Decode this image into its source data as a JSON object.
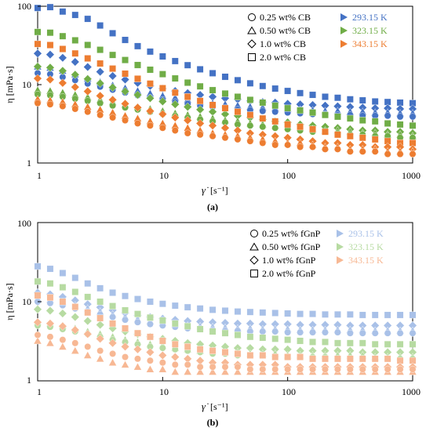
{
  "panels": [
    {
      "caption": "(a)"
    },
    {
      "caption": "(b)"
    }
  ],
  "chart_data": [
    {
      "type": "scatter",
      "title": "",
      "xlabel": "γ̇",
      "xunit": "[s⁻¹]",
      "ylabel": "η [mPa·s]",
      "xscale": "log",
      "yscale": "log",
      "xlim": [
        1,
        1000
      ],
      "ylim": [
        1,
        100
      ],
      "xticks": [
        "1",
        "10",
        "100",
        "1000"
      ],
      "yticks": [
        "1",
        "10",
        "100"
      ],
      "grid": false,
      "legend_placement": "top-right",
      "legend_shapes": [
        {
          "marker": "circle",
          "label": "0.25 wt% CB"
        },
        {
          "marker": "triangle",
          "label": "0.50 wt% CB"
        },
        {
          "marker": "diamond",
          "label": "1.0 wt% CB"
        },
        {
          "marker": "square",
          "label": "2.0 wt% CB"
        }
      ],
      "legend_temps": [
        {
          "label": "293.15 K",
          "color": "#4472C4"
        },
        {
          "label": "323.15 K",
          "color": "#70AD47"
        },
        {
          "label": "343.15 K",
          "color": "#ED7D31"
        }
      ],
      "x": [
        1.0,
        1.259,
        1.585,
        1.995,
        2.512,
        3.162,
        3.981,
        5.012,
        6.31,
        7.943,
        10.0,
        12.59,
        15.85,
        19.95,
        25.12,
        31.62,
        39.81,
        50.12,
        63.1,
        79.43,
        100.0,
        125.9,
        158.5,
        199.5,
        251.2,
        316.2,
        398.1,
        501.2,
        631.0,
        794.3,
        1000.0
      ],
      "series": [
        {
          "marker": "square",
          "color": "#4472C4",
          "values": [
            95,
            97.4,
            85.6,
            77.4,
            69.0,
            56.8,
            45.3,
            37.2,
            31.0,
            26.4,
            22.9,
            20.0,
            17.7,
            15.7,
            14.0,
            12.6,
            11.4,
            10.4,
            9.6,
            8.9,
            8.3,
            7.8,
            7.4,
            7.0,
            6.8,
            6.5,
            6.3,
            6.1,
            6.0,
            5.9,
            5.8
          ]
        },
        {
          "marker": "diamond",
          "color": "#4472C4",
          "values": [
            25,
            24.2,
            22.0,
            19.5,
            16.8,
            14.6,
            12.9,
            11.6,
            10.5,
            9.6,
            8.9,
            8.3,
            7.8,
            7.4,
            7.0,
            6.7,
            6.5,
            6.2,
            6.0,
            5.9,
            5.7,
            5.6,
            5.5,
            5.4,
            5.3,
            5.2,
            5.1,
            5.0,
            5.0,
            4.9,
            4.9
          ]
        },
        {
          "marker": "triangle",
          "color": "#4472C4",
          "values": [
            17,
            16.4,
            15.0,
            13.5,
            12.0,
            10.8,
            9.8,
            9.0,
            8.3,
            7.7,
            7.2,
            6.8,
            6.4,
            6.1,
            5.8,
            5.6,
            5.4,
            5.2,
            5.1,
            5.0,
            4.9,
            4.8,
            4.7,
            4.6,
            4.6,
            4.5,
            4.5,
            4.4,
            4.4,
            4.3,
            4.3
          ]
        },
        {
          "marker": "circle",
          "color": "#4472C4",
          "values": [
            14,
            13.6,
            12.5,
            11.4,
            10.3,
            9.4,
            8.6,
            7.9,
            7.3,
            6.8,
            6.4,
            6.0,
            5.7,
            5.4,
            5.2,
            5.0,
            4.8,
            4.7,
            4.6,
            4.5,
            4.4,
            4.3,
            4.2,
            4.2,
            4.1,
            4.1,
            4.0,
            4.0,
            4.0,
            3.9,
            3.9
          ]
        },
        {
          "marker": "square",
          "color": "#70AD47",
          "values": [
            47,
            46.0,
            41.5,
            36.8,
            32.1,
            27.8,
            23.9,
            20.6,
            17.8,
            15.5,
            13.6,
            12.0,
            10.6,
            9.5,
            8.5,
            7.7,
            7.0,
            6.4,
            5.9,
            5.4,
            5.0,
            4.7,
            4.4,
            4.1,
            3.9,
            3.7,
            3.5,
            3.4,
            3.2,
            3.1,
            3.0
          ]
        },
        {
          "marker": "diamond",
          "color": "#70AD47",
          "values": [
            17,
            16.5,
            15.0,
            13.4,
            11.8,
            10.4,
            9.2,
            8.2,
            7.4,
            6.7,
            6.1,
            5.6,
            5.2,
            4.8,
            4.5,
            4.2,
            4.0,
            3.8,
            3.6,
            3.4,
            3.3,
            3.1,
            3.0,
            2.9,
            2.8,
            2.7,
            2.6,
            2.6,
            2.5,
            2.5,
            2.4
          ]
        },
        {
          "marker": "triangle",
          "color": "#70AD47",
          "values": [
            8.5,
            8.3,
            7.9,
            7.4,
            6.9,
            6.4,
            6.0,
            5.6,
            5.2,
            4.9,
            4.6,
            4.3,
            4.1,
            3.9,
            3.7,
            3.5,
            3.4,
            3.2,
            3.1,
            3.0,
            2.9,
            2.8,
            2.7,
            2.6,
            2.6,
            2.5,
            2.4,
            2.4,
            2.3,
            2.3,
            2.2
          ]
        },
        {
          "marker": "circle",
          "color": "#70AD47",
          "values": [
            7.5,
            7.3,
            7.0,
            6.6,
            6.2,
            5.8,
            5.4,
            5.1,
            4.8,
            4.5,
            4.2,
            4.0,
            3.8,
            3.6,
            3.4,
            3.3,
            3.1,
            3.0,
            2.9,
            2.8,
            2.7,
            2.6,
            2.5,
            2.5,
            2.4,
            2.3,
            2.3,
            2.2,
            2.2,
            2.1,
            2.1
          ]
        },
        {
          "marker": "square",
          "color": "#ED7D31",
          "values": [
            33,
            32.0,
            28.5,
            25.0,
            21.6,
            18.6,
            16.0,
            13.8,
            11.9,
            10.3,
            9.0,
            7.9,
            7.0,
            6.2,
            5.5,
            5.0,
            4.5,
            4.1,
            3.7,
            3.4,
            3.1,
            2.9,
            2.7,
            2.5,
            2.3,
            2.2,
            2.1,
            2.0,
            1.9,
            1.8,
            1.8
          ]
        },
        {
          "marker": "diamond",
          "color": "#ED7D31",
          "values": [
            12,
            11.6,
            10.5,
            9.3,
            8.2,
            7.2,
            6.4,
            5.7,
            5.1,
            4.6,
            4.2,
            3.8,
            3.5,
            3.2,
            3.0,
            2.8,
            2.6,
            2.4,
            2.3,
            2.2,
            2.1,
            2.0,
            1.9,
            1.8,
            1.8,
            1.7,
            1.7,
            1.6,
            1.6,
            1.6,
            1.5
          ]
        },
        {
          "marker": "triangle",
          "color": "#ED7D31",
          "values": [
            6.5,
            6.3,
            6.0,
            5.6,
            5.2,
            4.8,
            4.4,
            4.0,
            3.7,
            3.4,
            3.2,
            3.0,
            2.8,
            2.6,
            2.4,
            2.3,
            2.2,
            2.1,
            2.0,
            1.9,
            1.8,
            1.8,
            1.7,
            1.6,
            1.6,
            1.5,
            1.5,
            1.5,
            1.4,
            1.4,
            1.4
          ]
        },
        {
          "marker": "circle",
          "color": "#ED7D31",
          "values": [
            5.8,
            5.6,
            5.3,
            4.9,
            4.5,
            4.1,
            3.8,
            3.5,
            3.2,
            3.0,
            2.8,
            2.6,
            2.4,
            2.3,
            2.2,
            2.1,
            2.0,
            1.9,
            1.8,
            1.7,
            1.7,
            1.6,
            1.6,
            1.5,
            1.5,
            1.4,
            1.4,
            1.4,
            1.3,
            1.3,
            1.3
          ]
        }
      ]
    },
    {
      "type": "scatter",
      "title": "",
      "xlabel": "γ̇",
      "xunit": "[s⁻¹]",
      "ylabel": "η [mPa·s]",
      "xscale": "log",
      "yscale": "log",
      "xlim": [
        1,
        1000
      ],
      "ylim": [
        1,
        100
      ],
      "xticks": [
        "1",
        "10",
        "100",
        "1000"
      ],
      "yticks": [
        "1",
        "10",
        "100"
      ],
      "grid": false,
      "legend_placement": "top-right",
      "legend_shapes": [
        {
          "marker": "circle",
          "label": "0.25 wt% fGnP"
        },
        {
          "marker": "triangle",
          "label": "0.50 wt% fGnP"
        },
        {
          "marker": "diamond",
          "label": "1.0 wt% fGnP"
        },
        {
          "marker": "square",
          "label": "2.0 wt% fGnP"
        }
      ],
      "legend_temps": [
        {
          "label": "293.15 K",
          "color": "#A9C1E8"
        },
        {
          "label": "323.15 K",
          "color": "#B7DBA2"
        },
        {
          "label": "343.15 K",
          "color": "#F7B894"
        }
      ],
      "x": [
        1.0,
        1.259,
        1.585,
        1.995,
        2.512,
        3.162,
        3.981,
        5.012,
        6.31,
        7.943,
        10.0,
        12.59,
        15.85,
        19.95,
        25.12,
        31.62,
        39.81,
        50.12,
        63.1,
        79.43,
        100.0,
        125.9,
        158.5,
        199.5,
        251.2,
        316.2,
        398.1,
        501.2,
        631.0,
        794.3,
        1000.0
      ],
      "series": [
        {
          "marker": "square",
          "color": "#A9C1E8",
          "values": [
            28,
            26.0,
            23.0,
            20.0,
            17.0,
            14.8,
            13.0,
            11.8,
            10.8,
            10.0,
            9.4,
            8.9,
            8.5,
            8.2,
            7.9,
            7.7,
            7.5,
            7.4,
            7.3,
            7.2,
            7.1,
            7.0,
            7.0,
            6.9,
            6.9,
            6.9,
            6.8,
            6.8,
            6.8,
            6.8,
            6.8
          ]
        },
        {
          "marker": "diamond",
          "color": "#A9C1E8",
          "values": [
            13,
            12.4,
            11.5,
            10.4,
            9.3,
            8.5,
            7.8,
            7.2,
            6.7,
            6.4,
            6.1,
            5.9,
            5.7,
            5.6,
            5.5,
            5.4,
            5.3,
            5.3,
            5.2,
            5.2,
            5.2,
            5.1,
            5.1,
            5.1,
            5.1,
            5.0,
            5.0,
            5.0,
            5.0,
            5.0,
            5.0
          ]
        },
        {
          "marker": "triangle",
          "color": "#A9C1E8",
          "values": [
            11,
            10.6,
            9.9,
            9.0,
            8.2,
            7.5,
            6.9,
            6.4,
            6.0,
            5.7,
            5.4,
            5.2,
            5.0,
            4.9,
            4.8,
            4.7,
            4.6,
            4.6,
            4.5,
            4.5,
            4.5,
            4.4,
            4.4,
            4.4,
            4.4,
            4.4,
            4.4,
            4.3,
            4.3,
            4.3,
            4.3
          ]
        },
        {
          "marker": "circle",
          "color": "#A9C1E8",
          "values": [
            10,
            9.6,
            9.0,
            8.2,
            7.5,
            6.9,
            6.4,
            5.9,
            5.5,
            5.2,
            5.0,
            4.8,
            4.6,
            4.5,
            4.4,
            4.3,
            4.3,
            4.2,
            4.2,
            4.2,
            4.1,
            4.1,
            4.1,
            4.1,
            4.1,
            4.0,
            4.0,
            4.0,
            4.0,
            4.0,
            4.0
          ]
        },
        {
          "marker": "square",
          "color": "#B7DBA2",
          "values": [
            18,
            17.0,
            15.2,
            13.3,
            11.5,
            10.0,
            8.8,
            7.8,
            7.0,
            6.3,
            5.8,
            5.3,
            4.9,
            4.5,
            4.2,
            4.0,
            3.8,
            3.6,
            3.5,
            3.4,
            3.3,
            3.2,
            3.1,
            3.1,
            3.0,
            3.0,
            3.0,
            2.9,
            2.9,
            2.9,
            2.9
          ]
        },
        {
          "marker": "diamond",
          "color": "#B7DBA2",
          "values": [
            8,
            7.7,
            7.1,
            6.4,
            5.7,
            5.1,
            4.6,
            4.2,
            3.9,
            3.6,
            3.4,
            3.2,
            3.0,
            2.9,
            2.8,
            2.7,
            2.6,
            2.6,
            2.5,
            2.5,
            2.5,
            2.4,
            2.4,
            2.4,
            2.4,
            2.4,
            2.3,
            2.3,
            2.3,
            2.3,
            2.3
          ]
        },
        {
          "marker": "triangle",
          "color": "#B7DBA2",
          "values": [
            5.5,
            5.3,
            5.0,
            4.6,
            4.2,
            3.9,
            3.6,
            3.3,
            3.1,
            2.9,
            2.8,
            2.6,
            2.5,
            2.4,
            2.4,
            2.3,
            2.3,
            2.2,
            2.2,
            2.2,
            2.1,
            2.1,
            2.1,
            2.1,
            2.1,
            2.1,
            2.1,
            2.0,
            2.0,
            2.0,
            2.0
          ]
        },
        {
          "marker": "circle",
          "color": "#B7DBA2",
          "values": [
            5,
            4.8,
            4.5,
            4.2,
            3.9,
            3.6,
            3.3,
            3.1,
            2.9,
            2.7,
            2.6,
            2.5,
            2.4,
            2.3,
            2.2,
            2.2,
            2.1,
            2.1,
            2.1,
            2.0,
            2.0,
            2.0,
            2.0,
            2.0,
            1.9,
            1.9,
            1.9,
            1.9,
            1.9,
            1.9,
            1.9
          ]
        },
        {
          "marker": "square",
          "color": "#F7B894",
          "values": [
            12,
            11.3,
            10.0,
            8.6,
            7.3,
            6.2,
            5.3,
            4.6,
            4.0,
            3.6,
            3.2,
            2.9,
            2.7,
            2.5,
            2.4,
            2.3,
            2.2,
            2.1,
            2.1,
            2.0,
            2.0,
            2.0,
            1.9,
            1.9,
            1.9,
            1.9,
            1.9,
            1.9,
            1.9,
            1.8,
            1.8
          ]
        },
        {
          "marker": "diamond",
          "color": "#F7B894",
          "values": [
            5.5,
            5.3,
            4.9,
            4.4,
            3.9,
            3.4,
            3.0,
            2.7,
            2.5,
            2.3,
            2.1,
            2.0,
            1.9,
            1.8,
            1.7,
            1.7,
            1.6,
            1.6,
            1.6,
            1.6,
            1.5,
            1.5,
            1.5,
            1.5,
            1.5,
            1.5,
            1.5,
            1.5,
            1.5,
            1.5,
            1.5
          ]
        },
        {
          "marker": "triangle",
          "color": "#F7B894",
          "values": [
            3.2,
            3.0,
            2.7,
            2.4,
            2.1,
            1.9,
            1.7,
            1.6,
            1.5,
            1.4,
            1.4,
            1.3,
            1.3,
            1.3,
            1.3,
            1.3,
            1.3,
            1.3,
            1.3,
            1.3,
            1.3,
            1.3,
            1.3,
            1.3,
            1.3,
            1.3,
            1.3,
            1.3,
            1.3,
            1.3,
            1.3
          ]
        },
        {
          "marker": "circle",
          "color": "#F7B894",
          "values": [
            3.8,
            3.6,
            3.3,
            3.0,
            2.7,
            2.4,
            2.2,
            2.0,
            1.9,
            1.8,
            1.7,
            1.6,
            1.6,
            1.5,
            1.5,
            1.5,
            1.5,
            1.4,
            1.4,
            1.4,
            1.4,
            1.4,
            1.4,
            1.4,
            1.4,
            1.4,
            1.4,
            1.4,
            1.4,
            1.4,
            1.4
          ]
        }
      ]
    }
  ]
}
